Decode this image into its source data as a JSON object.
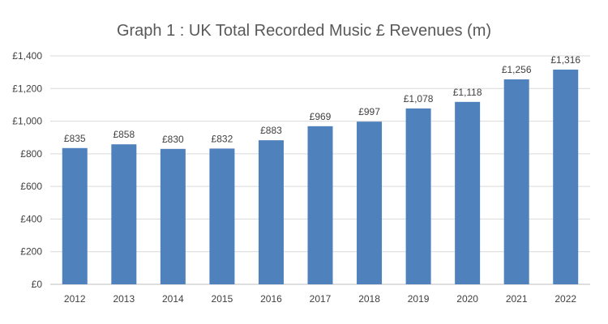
{
  "chart_data": {
    "type": "bar",
    "title": "Graph 1 : UK Total Recorded Music £ Revenues (m)",
    "xlabel": "",
    "ylabel": "",
    "categories": [
      "2012",
      "2013",
      "2014",
      "2015",
      "2016",
      "2017",
      "2018",
      "2019",
      "2020",
      "2021",
      "2022"
    ],
    "values": [
      835,
      858,
      830,
      832,
      883,
      969,
      997,
      1078,
      1118,
      1256,
      1316
    ],
    "data_labels": [
      "£835",
      "£858",
      "£830",
      "£832",
      "£883",
      "£969",
      "£997",
      "£1,078",
      "£1,118",
      "£1,256",
      "£1,316"
    ],
    "ylim": [
      0,
      1400
    ],
    "y_ticks": [
      0,
      200,
      400,
      600,
      800,
      1000,
      1200,
      1400
    ],
    "y_tick_labels": [
      "£0",
      "£200",
      "£400",
      "£600",
      "£800",
      "£1,000",
      "£1,200",
      "£1,400"
    ],
    "grid": true,
    "legend": "none",
    "colors": {
      "bar": "#4f81bd"
    }
  }
}
